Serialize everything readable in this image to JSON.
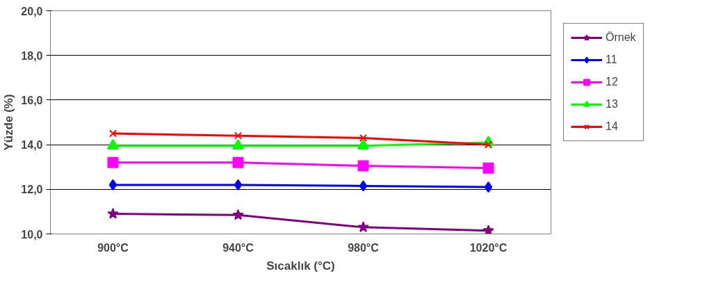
{
  "chart_data": {
    "type": "line",
    "xlabel": "Sıcaklık (°C)",
    "ylabel": "Yüzde (%)",
    "categories": [
      "900°C",
      "940°C",
      "980°C",
      "1020°C"
    ],
    "ylim": [
      10,
      20
    ],
    "yticks": [
      {
        "value": 10,
        "label": "10,0"
      },
      {
        "value": 12,
        "label": "12,0"
      },
      {
        "value": 14,
        "label": "14,0"
      },
      {
        "value": 16,
        "label": "16,0"
      },
      {
        "value": 18,
        "label": "18,0"
      },
      {
        "value": 20,
        "label": "20,0"
      }
    ],
    "grid": "y",
    "legend": "right",
    "series": [
      {
        "name": "Örnek",
        "color": "#800080",
        "marker": "star",
        "values": [
          10.9,
          10.85,
          10.3,
          10.15
        ]
      },
      {
        "name": "11",
        "color": "#0000ff",
        "marker": "diamond",
        "values": [
          12.2,
          12.2,
          12.15,
          12.1
        ]
      },
      {
        "name": "12",
        "color": "#ff00ff",
        "marker": "square",
        "values": [
          13.2,
          13.2,
          13.05,
          12.95
        ]
      },
      {
        "name": "13",
        "color": "#00ff00",
        "marker": "triangle",
        "values": [
          13.95,
          13.95,
          13.95,
          14.1
        ]
      },
      {
        "name": "14",
        "color": "#ff0000",
        "marker": "cross",
        "values": [
          14.5,
          14.4,
          14.3,
          14.0
        ]
      }
    ]
  }
}
